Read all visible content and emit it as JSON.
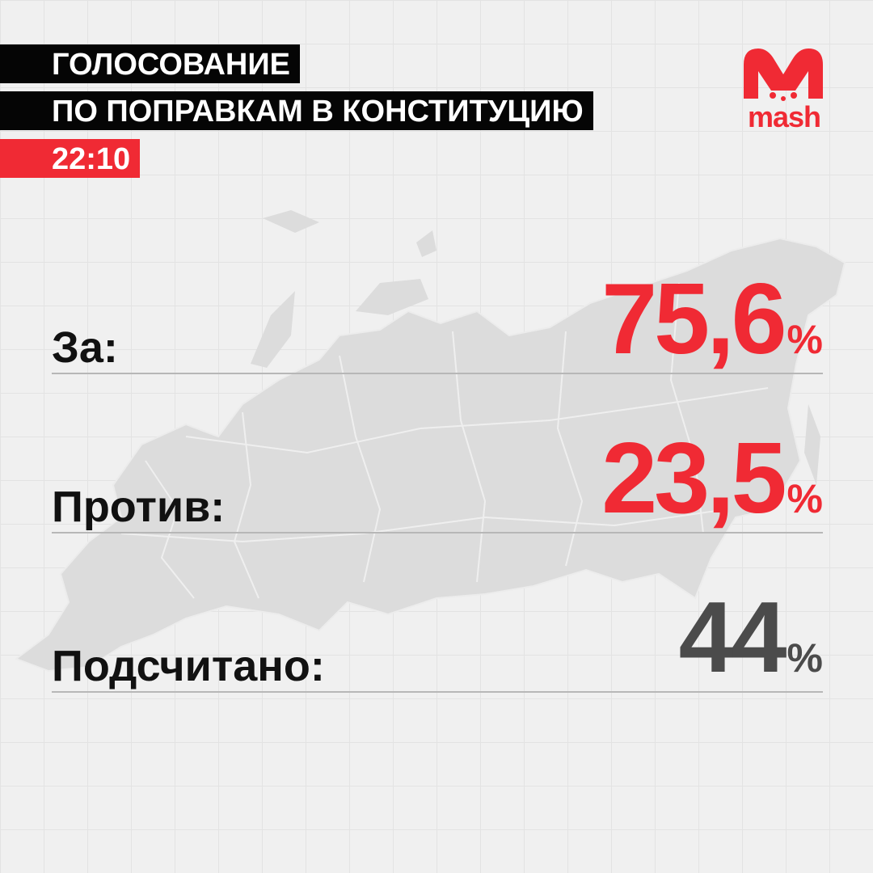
{
  "header": {
    "title_line1": "ГОЛОСОВАНИЕ",
    "title_line2": "ПО ПОПРАВКАМ В КОНСТИТУЦИЮ",
    "time": "22:10"
  },
  "logo": {
    "text": "mash",
    "icon": "mash-m-logo-icon"
  },
  "results": [
    {
      "label": "За:",
      "value": "75,6",
      "unit": "%",
      "color": "#f02a34"
    },
    {
      "label": "Против:",
      "value": "23,5",
      "unit": "%",
      "color": "#f02a34"
    },
    {
      "label": "Подсчитано:",
      "value": "44",
      "unit": "%",
      "color": "#4b4b4b"
    }
  ],
  "colors": {
    "accent": "#f02a34",
    "dark": "#050505",
    "background": "#f0f0f0",
    "map": "#dddddd"
  },
  "background_icon": "russia-map-icon"
}
